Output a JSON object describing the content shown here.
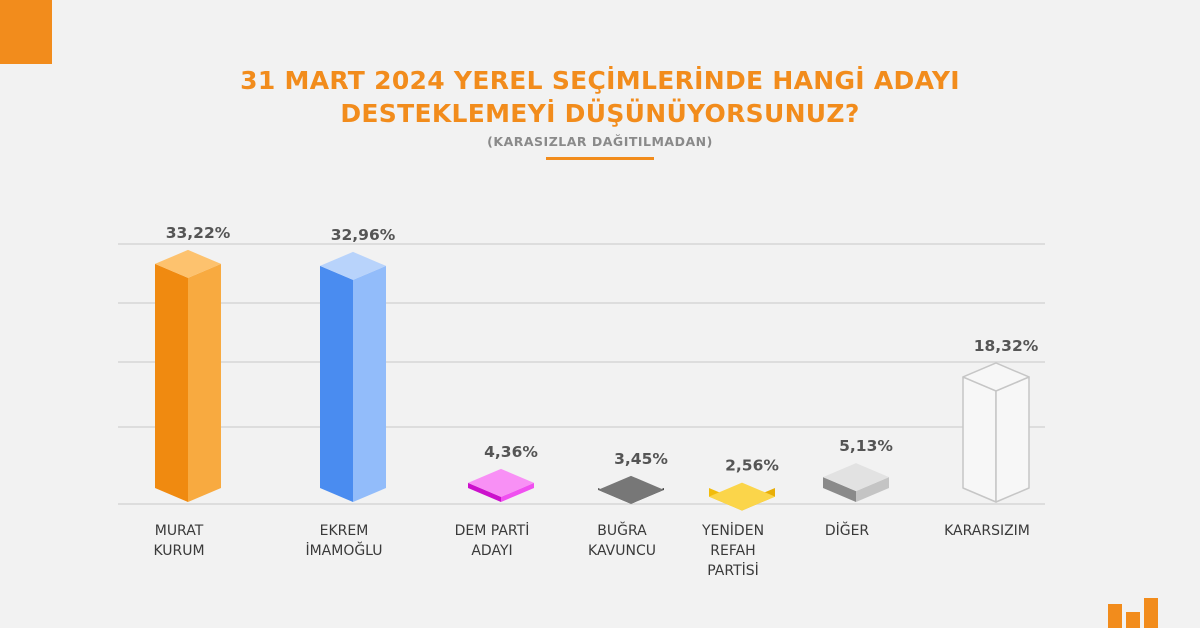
{
  "colors": {
    "accent": "#f28c1c",
    "background": "#f2f2f2",
    "grid": "#d6d6d6"
  },
  "title": {
    "line1": "31 MART 2024 YEREL SEÇİMLERİNDE HANGİ ADAYI",
    "line2": "DESTEKLEMEYİ DÜŞÜNÜYORSUNUZ?",
    "subtitle": "(KARASIZLAR DAĞITILMADAN)"
  },
  "chart_data": {
    "type": "bar",
    "title": "31 MART 2024 YEREL SEÇİMLERİNDE HANGİ ADAYI DESTEKLEMEYİ DÜŞÜNÜYORSUNUZ?",
    "subtitle": "(KARASIZLAR DAĞITILMADAN)",
    "xlabel": "",
    "ylabel": "",
    "ylim": [
      0,
      40
    ],
    "grid": true,
    "categories": [
      [
        "MURAT",
        "KURUM"
      ],
      [
        "EKREM",
        "İMAMOĞLU"
      ],
      [
        "DEM PARTİ",
        "ADAYI"
      ],
      [
        "BUĞRA",
        "KAVUNCU"
      ],
      [
        "YENİDEN",
        "REFAH",
        "PARTİSİ"
      ],
      [
        "DİĞER"
      ],
      [
        "KARARSIZIM"
      ]
    ],
    "values": [
      33.22,
      32.96,
      4.36,
      3.45,
      2.56,
      5.13,
      18.32
    ],
    "value_labels": [
      "33,22%",
      "32,96%",
      "4,36%",
      "3,45%",
      "2,56%",
      "5,13%",
      "18,32%"
    ],
    "bar_colors": [
      {
        "front": "#f08a10",
        "side": "#f8aa40",
        "top": "#fdc26e"
      },
      {
        "front": "#4a8cf0",
        "side": "#92bcfa",
        "top": "#b8d3fb"
      },
      {
        "front": "#cc10cc",
        "side": "#f050f0",
        "top": "#f890f5"
      },
      {
        "front": "#555555",
        "side": "#333333",
        "top": "#777777"
      },
      {
        "front": "#f2bc0c",
        "side": "#e8ae08",
        "top": "#fbd54a"
      },
      {
        "front": "#8a8a8a",
        "side": "#c4c4c4",
        "top": "#e2e2e2"
      },
      {
        "front": "#f7f7f7",
        "side": "#f7f7f7",
        "top": "#f7f7f7",
        "outline": "#c6c6c6"
      }
    ]
  }
}
